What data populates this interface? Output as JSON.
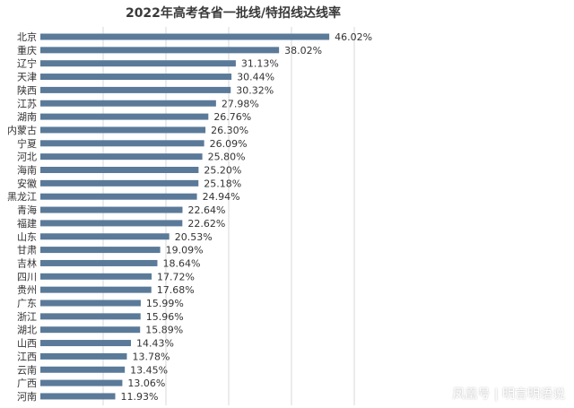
{
  "chart_data": {
    "type": "bar",
    "orientation": "horizontal",
    "title": "2022年高考各省一批线/特招线达线率",
    "categories": [
      "北京",
      "重庆",
      "辽宁",
      "天津",
      "陕西",
      "江苏",
      "湖南",
      "内蒙古",
      "宁夏",
      "河北",
      "海南",
      "安徽",
      "黑龙江",
      "青海",
      "福建",
      "山东",
      "甘肃",
      "吉林",
      "四川",
      "贵州",
      "广东",
      "浙江",
      "湖北",
      "山西",
      "江西",
      "云南",
      "广西",
      "河南"
    ],
    "values": [
      46.02,
      38.02,
      31.13,
      30.44,
      30.32,
      27.98,
      26.76,
      26.3,
      26.09,
      25.8,
      25.2,
      25.18,
      24.94,
      22.64,
      22.62,
      20.53,
      19.09,
      18.64,
      17.72,
      17.68,
      15.99,
      15.96,
      15.89,
      14.43,
      13.78,
      13.45,
      13.06,
      11.93
    ],
    "value_labels": [
      "46.02%",
      "38.02%",
      "31.13%",
      "30.44%",
      "30.32%",
      "27.98%",
      "26.76%",
      "26.30%",
      "26.09%",
      "25.80%",
      "25.20%",
      "25.18%",
      "24.94%",
      "22.64%",
      "22.62%",
      "20.53%",
      "19.09%",
      "18.64%",
      "17.72%",
      "17.68%",
      "15.99%",
      "15.96%",
      "15.89%",
      "14.43%",
      "13.78%",
      "13.45%",
      "13.06%",
      "11.93%"
    ],
    "xlim": [
      0,
      50
    ],
    "grid": true,
    "bar_color": "#5b7a99"
  },
  "watermark": "凤凰号 | 明言明语说"
}
